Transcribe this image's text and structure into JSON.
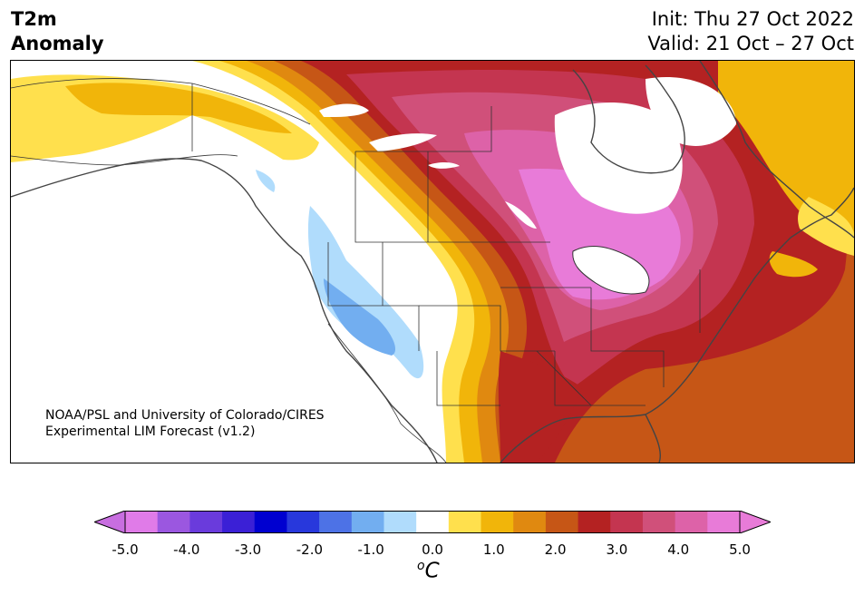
{
  "title": {
    "line1": "T2m",
    "line2": "Anomaly"
  },
  "header_right": {
    "line1": "Init: Thu 27 Oct 2022",
    "line2": "Valid: 21 Oct – 27 Oct"
  },
  "credit": {
    "line1": "NOAA/PSL and University of Colorado/CIRES",
    "line2": "Experimental LIM Forecast (v1.2)"
  },
  "colorbar": {
    "ticks": [
      "-5.0",
      "-4.0",
      "-3.0",
      "-2.0",
      "-1.0",
      "0.0",
      "1.0",
      "2.0",
      "3.0",
      "4.0",
      "5.0"
    ],
    "unit_base": "C",
    "unit_sup": "o",
    "colors": [
      "#e07be8",
      "#9b57e0",
      "#6a3bdc",
      "#3b20d6",
      "#0000d0",
      "#2838dc",
      "#4d72e6",
      "#72aef0",
      "#b0dcfc",
      "#ffffff",
      "#ffe04d",
      "#f1b50a",
      "#e08910",
      "#c65616",
      "#b42222",
      "#c43550",
      "#d0507a",
      "#dd62a8",
      "#e87bd8"
    ],
    "under_color": "#c86ee0",
    "over_color": "#e87bd8"
  }
}
